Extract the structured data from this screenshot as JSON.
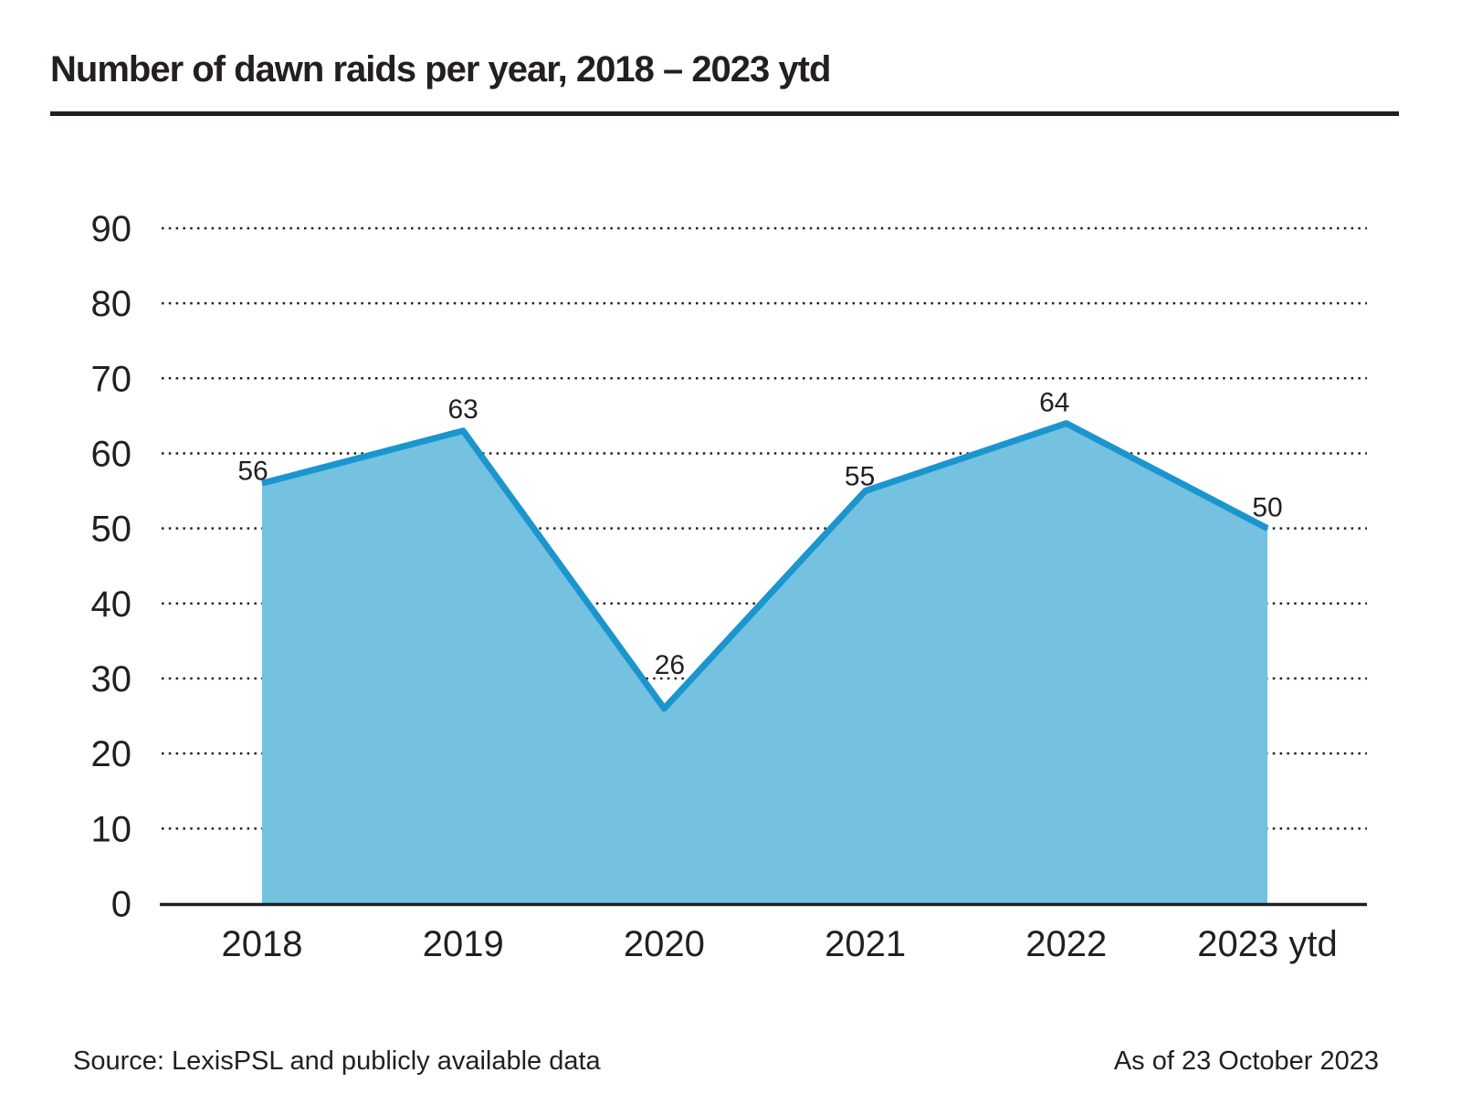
{
  "header": {
    "title": "Number of dawn raids per year, 2018 – 2023 ytd"
  },
  "chart_data": {
    "type": "area",
    "title": "Number of dawn raids per year, 2018 – 2023 ytd",
    "categories": [
      "2018",
      "2019",
      "2020",
      "2021",
      "2022",
      "2023 ytd"
    ],
    "values": [
      56,
      63,
      26,
      55,
      64,
      50
    ],
    "data_labels": [
      "56",
      "63",
      "26",
      "55",
      "64",
      "50"
    ],
    "xlabel": "",
    "ylabel": "",
    "ylim": [
      0,
      90
    ],
    "yticks": [
      0,
      10,
      20,
      30,
      40,
      50,
      60,
      70,
      80,
      90
    ],
    "grid": "horizontal-dotted",
    "legend": "none",
    "line_color": "#1b95cd",
    "fill_color": "#74c1e0",
    "axis_color": "#231f20",
    "label_color": "#231f20"
  },
  "footer": {
    "source": "Source: LexisPSL and publicly available data",
    "as_of": "As of 23 October 2023"
  }
}
